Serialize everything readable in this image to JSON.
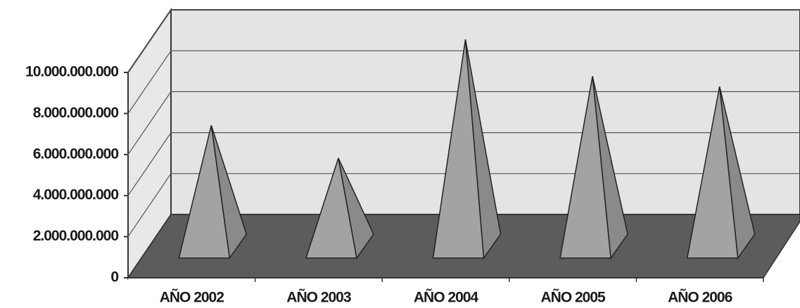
{
  "chart_data": {
    "type": "pyramid3d",
    "categories": [
      "AÑO 2002",
      "AÑO 2003",
      "AÑO 2004",
      "AÑO 2005",
      "AÑO 2006"
    ],
    "values": [
      5900000000,
      4300000000,
      10100000000,
      8300000000,
      7800000000
    ],
    "color": "#a3a3a3",
    "ylim": [
      0,
      10000000000
    ],
    "yticks": [
      0,
      {
        "value": 2000000000,
        "label": "2.000.000.000"
      },
      {
        "value": 4000000000,
        "label": "4.000.000.000"
      },
      {
        "value": 6000000000,
        "label": "6.000.000.000"
      },
      {
        "value": 8000000000,
        "label": "8.000.000.000"
      },
      {
        "value": 10000000000,
        "label": "10.000.000.000"
      }
    ],
    "grid": true
  }
}
